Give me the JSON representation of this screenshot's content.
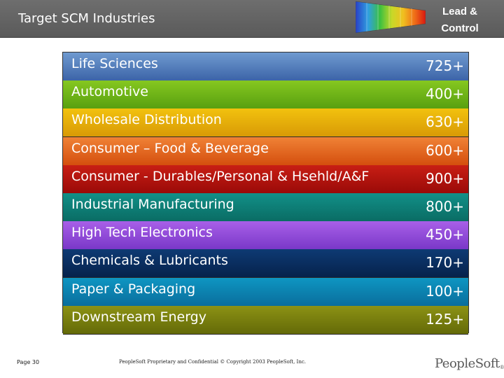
{
  "header": {
    "title": "Target SCM Industries",
    "badge_line1": "Lead &",
    "badge_line2": "Control"
  },
  "rows": [
    {
      "label": "Life Sciences",
      "value": "725+",
      "color_top": "#6f9ad0",
      "color_bottom": "#3c64a8"
    },
    {
      "label": "Automotive",
      "value": "400+",
      "color_top": "#86c820",
      "color_bottom": "#58a010"
    },
    {
      "label": "Wholesale Distribution",
      "value": "630+",
      "color_top": "#f2c20e",
      "color_bottom": "#d89a06"
    },
    {
      "label": "Consumer – Food & Beverage",
      "value": "600+",
      "color_top": "#f08236",
      "color_bottom": "#d44e0e"
    },
    {
      "label": "Consumer - Durables/Personal & Hsehld/A&F",
      "value": "900+",
      "color_top": "#c81e14",
      "color_bottom": "#9a0a08"
    },
    {
      "label": "Industrial Manufacturing",
      "value": "800+",
      "color_top": "#129088",
      "color_bottom": "#0a6c64"
    },
    {
      "label": "High Tech Electronics",
      "value": "450+",
      "color_top": "#a860e8",
      "color_bottom": "#7a38c8"
    },
    {
      "label": "Chemicals & Lubricants",
      "value": "170+",
      "color_top": "#0e3a74",
      "color_bottom": "#06224c"
    },
    {
      "label": "Paper & Packaging",
      "value": "100+",
      "color_top": "#0e96c2",
      "color_bottom": "#0a6e9c"
    },
    {
      "label": "Downstream Energy",
      "value": "125+",
      "color_top": "#8c9214",
      "color_bottom": "#646a08"
    }
  ],
  "footer": {
    "page": "Page 30",
    "copyright": "PeopleSoft Proprietary and Confidential © Copyright 2003 PeopleSoft, Inc.",
    "logo": "PeopleSoft",
    "logo_mark": "®"
  }
}
